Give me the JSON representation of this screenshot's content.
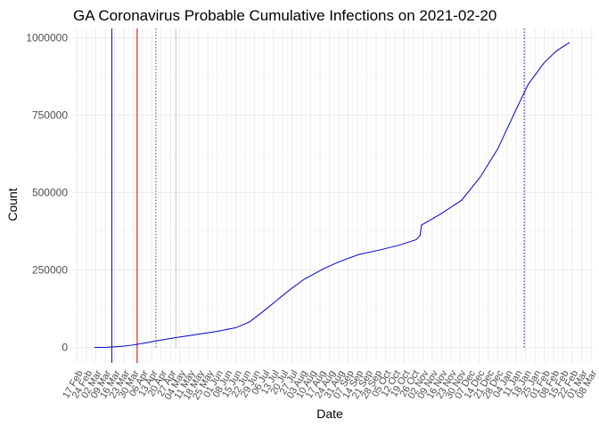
{
  "chart_data": {
    "type": "line",
    "title": "GA Coronavirus Probable Cumulative Infections on 2021-02-20",
    "xlabel": "Date",
    "ylabel": "Count",
    "ylim": [
      -50000,
      1030000
    ],
    "xlim": [
      "2020-02-14",
      "2021-03-10"
    ],
    "y_ticks": [
      0,
      250000,
      500000,
      750000,
      1000000
    ],
    "y_tick_labels": [
      "0",
      "250000",
      "500000",
      "750000",
      "1000000"
    ],
    "x_tick_dates": [
      "2020-02-17",
      "2020-02-24",
      "2020-03-02",
      "2020-03-09",
      "2020-03-16",
      "2020-03-23",
      "2020-03-30",
      "2020-04-06",
      "2020-04-13",
      "2020-04-20",
      "2020-04-27",
      "2020-05-04",
      "2020-05-11",
      "2020-05-18",
      "2020-05-25",
      "2020-06-01",
      "2020-06-08",
      "2020-06-15",
      "2020-06-22",
      "2020-06-29",
      "2020-07-06",
      "2020-07-13",
      "2020-07-20",
      "2020-07-27",
      "2020-08-03",
      "2020-08-10",
      "2020-08-17",
      "2020-08-24",
      "2020-08-31",
      "2020-09-07",
      "2020-09-14",
      "2020-09-21",
      "2020-09-28",
      "2020-10-05",
      "2020-10-12",
      "2020-10-19",
      "2020-10-26",
      "2020-11-02",
      "2020-11-09",
      "2020-11-16",
      "2020-11-23",
      "2020-11-30",
      "2020-12-07",
      "2020-12-14",
      "2020-12-21",
      "2020-12-28",
      "2021-01-04",
      "2021-01-11",
      "2021-01-18",
      "2021-01-25",
      "2021-02-01",
      "2021-02-08",
      "2021-02-15",
      "2021-02-22",
      "2021-03-01",
      "2021-03-08"
    ],
    "x_tick_labels": [
      "17 Feb",
      "24 Feb",
      "02 Mar",
      "09 Mar",
      "16 Mar",
      "23 Mar",
      "30 Mar",
      "06 Apr",
      "13 Apr",
      "20 Apr",
      "27 Apr",
      "04 May",
      "11 May",
      "18 May",
      "25 May",
      "01 Jun",
      "08 Jun",
      "15 Jun",
      "22 Jun",
      "29 Jun",
      "06 Jul",
      "13 Jul",
      "20 Jul",
      "27 Jul",
      "03 Aug",
      "10 Aug",
      "17 Aug",
      "24 Aug",
      "31 Aug",
      "07 Sep",
      "14 Sep",
      "21 Sep",
      "28 Sep",
      "05 Oct",
      "12 Oct",
      "19 Oct",
      "26 Oct",
      "02 Nov",
      "09 Nov",
      "16 Nov",
      "23 Nov",
      "30 Nov",
      "07 Dec",
      "14 Dec",
      "21 Dec",
      "28 Dec",
      "04 Jan",
      "11 Jan",
      "18 Jan",
      "25 Jan",
      "01 Feb",
      "08 Feb",
      "15 Feb",
      "22 Feb",
      "01 Mar",
      "08 Mar"
    ],
    "grid": true,
    "series": [
      {
        "color": "#0000cc",
        "x": [
          "2020-03-01",
          "2020-03-10",
          "2020-03-20",
          "2020-03-30",
          "2020-04-10",
          "2020-04-20",
          "2020-05-01",
          "2020-05-15",
          "2020-06-01",
          "2020-06-15",
          "2020-06-25",
          "2020-07-05",
          "2020-07-15",
          "2020-07-25",
          "2020-08-05",
          "2020-08-20",
          "2020-09-01",
          "2020-09-15",
          "2020-10-01",
          "2020-10-15",
          "2020-10-28",
          "2020-10-31",
          "2020-11-01",
          "2020-11-15",
          "2020-12-01",
          "2020-12-15",
          "2020-12-28",
          "2021-01-10",
          "2021-01-20",
          "2021-02-01",
          "2021-02-10",
          "2021-02-20"
        ],
        "y": [
          0,
          500,
          3000,
          8000,
          16000,
          24000,
          32000,
          41000,
          52000,
          64000,
          82000,
          115000,
          150000,
          185000,
          220000,
          255000,
          278000,
          300000,
          315000,
          330000,
          348000,
          362000,
          395000,
          430000,
          475000,
          550000,
          640000,
          760000,
          850000,
          920000,
          957000,
          985000
        ]
      }
    ],
    "reference_lines": [
      {
        "x": "2020-03-14",
        "color": "#0000cc",
        "style": "solid",
        "y_from": -50000
      },
      {
        "x": "2020-04-02",
        "color": "#cc0000",
        "style": "solid",
        "y_from": -50000
      },
      {
        "x": "2020-04-16",
        "color": "#8b3a3a",
        "style": "dotted",
        "y_from": 0
      },
      {
        "x": "2020-05-01",
        "color": "#ffb0b0",
        "style": "solid",
        "y_from": 0
      },
      {
        "x": "2021-01-17",
        "color": "#0000cc",
        "style": "dotted",
        "y_from": 0
      }
    ]
  }
}
